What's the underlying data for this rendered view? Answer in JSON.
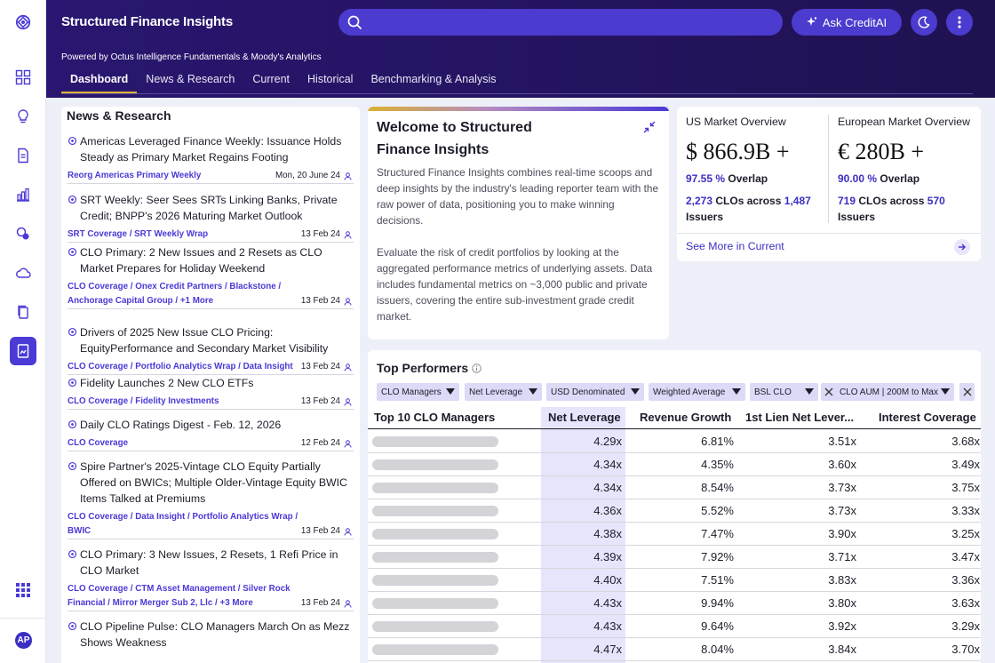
{
  "header": {
    "app_title": "Structured Finance Insights",
    "search_placeholder": "",
    "ask_label": "Ask CreditAI",
    "powered_by": "Powered by Octus Intelligence Fundamentals & Moody's Analytics"
  },
  "tabs": [
    "Dashboard",
    "News & Research",
    "Current",
    "Historical",
    "Benchmarking & Analysis"
  ],
  "active_tab": "Dashboard",
  "user": {
    "initials": "AP"
  },
  "colors": {
    "brand": "#2a1670",
    "accent": "#4a3ad6",
    "highlight": "#d9b233"
  },
  "news": {
    "title": "News & Research",
    "items": [
      {
        "headline": "Americas Leveraged Finance Weekly: Issuance Holds Steady as Primary Market Regains Footing",
        "tags": "Reorg Americas Primary Weekly",
        "date": "Mon, 20 June 24"
      },
      {
        "headline": "SRT Weekly: Seer Sees SRTs Linking Banks, Private Credit; BNPP's 2026 Maturing Market Outlook",
        "tags": "SRT Coverage / SRT Weekly Wrap",
        "date": "13 Feb 24"
      },
      {
        "headline": "CLO Primary: 2 New Issues and 2 Resets as CLO Market Prepares for Holiday Weekend",
        "tags": "CLO Coverage / Onex Credit Partners / Blackstone / Anchorage Capital Group / +1 More",
        "date": "13 Feb 24"
      },
      {
        "headline": "Drivers of 2025 New Issue CLO Pricing: EquityPerformance and Secondary Market Visibility",
        "tags": "CLO Coverage / Portfolio Analytics Wrap / Data Insight",
        "date": "13 Feb 24"
      },
      {
        "headline": "Fidelity Launches 2 New CLO ETFs",
        "tags": "CLO Coverage / Fidelity Investments",
        "date": "13 Feb 24"
      },
      {
        "headline": "Daily CLO Ratings Digest - Feb. 12, 2026",
        "tags": "CLO Coverage",
        "date": "12 Feb 24"
      },
      {
        "headline": "Spire Partner's 2025-Vintage CLO Equity Partially Offered on BWICs; Multiple Older-Vintage Equity BWIC Items Talked at Premiums",
        "tags": "CLO Coverage / Data Insight / Portfolio Analytics Wrap / BWIC",
        "date": "13 Feb 24"
      },
      {
        "headline": "CLO Primary: 3 New Issues, 2 Resets, 1 Refi Price in CLO Market",
        "tags": "CLO Coverage / CTM Asset Management / Silver Rock Financial / Mirror Merger Sub 2, Llc / +3 More",
        "date": "13 Feb 24"
      },
      {
        "headline": "CLO Pipeline Pulse: CLO Managers March On as Mezz Shows Weakness",
        "tags": "",
        "date": ""
      }
    ]
  },
  "welcome": {
    "title": "Welcome to Structured Finance Insights",
    "para1": "Structured Finance Insights combines real-time scoops and deep insights by the industry's leading reporter team with the raw power of data, positioning you to make winning decisions.",
    "para2": "Evaluate the risk of credit portfolios by looking at the aggregated performance metrics of underlying assets. Data includes fundamental metrics on ~3,000 public and private issuers, covering the entire sub-investment grade credit market."
  },
  "market": {
    "us": {
      "label": "US Market Overview",
      "value": "$ 866.9B +",
      "overlap_pct": "97.55 %",
      "overlap_label": "Overlap",
      "clo_count": "2,273",
      "clo_mid": "CLOs across",
      "issuer_count": "1,487",
      "issuer_label": "Issuers"
    },
    "eu": {
      "label": "European Market Overview",
      "value": "€ 280B +",
      "overlap_pct": "90.00 %",
      "overlap_label": "Overlap",
      "clo_count": "719",
      "clo_mid": "CLOs across",
      "issuer_count": "570",
      "issuer_label": "Issuers"
    },
    "see_more": "See More in Current"
  },
  "top_performers": {
    "title": "Top Performers",
    "filters": [
      "CLO Managers",
      "Net Leverage",
      "USD Denominated",
      "Weighted Average",
      "BSL CLO",
      "CLO AUM | 200M to Max"
    ],
    "columns": [
      "Top 10 CLO Managers",
      "Net Leverage",
      "Revenue Growth",
      "1st Lien Net Lever...",
      "Interest Coverage"
    ],
    "rows": [
      [
        "4.29x",
        "6.81%",
        "3.51x",
        "3.68x"
      ],
      [
        "4.34x",
        "4.35%",
        "3.60x",
        "3.49x"
      ],
      [
        "4.34x",
        "8.54%",
        "3.73x",
        "3.75x"
      ],
      [
        "4.36x",
        "5.52%",
        "3.73x",
        "3.33x"
      ],
      [
        "4.38x",
        "7.47%",
        "3.90x",
        "3.25x"
      ],
      [
        "4.39x",
        "7.92%",
        "3.71x",
        "3.47x"
      ],
      [
        "4.40x",
        "7.51%",
        "3.83x",
        "3.36x"
      ],
      [
        "4.43x",
        "9.94%",
        "3.80x",
        "3.63x"
      ],
      [
        "4.43x",
        "9.64%",
        "3.92x",
        "3.29x"
      ],
      [
        "4.47x",
        "8.04%",
        "3.84x",
        "3.70x"
      ]
    ]
  },
  "rail": {
    "icons": [
      "logo-icon",
      "dashboard-icon",
      "lightbulb-icon",
      "document-icon",
      "chart-icon",
      "coins-icon",
      "cloud-icon",
      "copy-icon",
      "report-icon",
      "apps-grid-icon"
    ]
  }
}
